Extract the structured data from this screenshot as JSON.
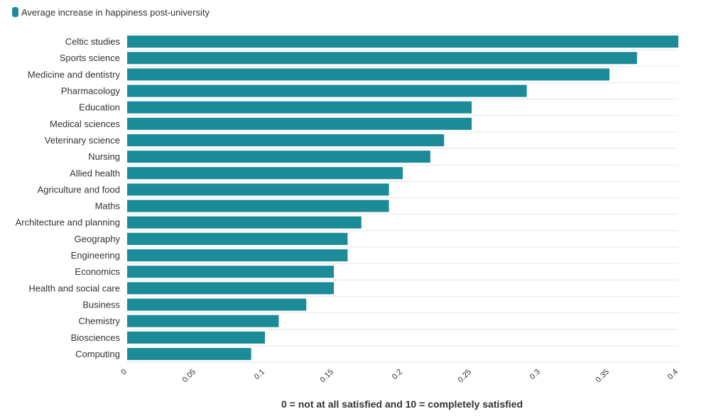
{
  "legend": {
    "label": "Average increase in happiness post-university",
    "color": "#1b8b98"
  },
  "chart_data": {
    "type": "bar",
    "orientation": "horizontal",
    "categories": [
      "Celtic studies",
      "Sports science",
      "Medicine and dentistry",
      "Pharmacology",
      "Education",
      "Medical sciences",
      "Veterinary science",
      "Nursing",
      "Allied health",
      "Agriculture and food",
      "Maths",
      "Architecture and planning",
      "Geography",
      "Engineering",
      "Economics",
      "Health and social care",
      "Business",
      "Chemistry",
      "Biosciences",
      "Computing"
    ],
    "series": [
      {
        "name": "Average increase in happiness post-university",
        "values": [
          0.4,
          0.37,
          0.35,
          0.29,
          0.25,
          0.25,
          0.23,
          0.22,
          0.2,
          0.19,
          0.19,
          0.17,
          0.16,
          0.16,
          0.15,
          0.15,
          0.13,
          0.11,
          0.1,
          0.09
        ]
      }
    ],
    "xlim": [
      0,
      0.4
    ],
    "xticks": [
      "0",
      "0.05",
      "0.1",
      "0.15",
      "0.2",
      "0.25",
      "0.3",
      "0.35",
      "0.4"
    ],
    "xlabel": "0 = not at all satisfied and 10 = completely satisfied",
    "ylabel": "",
    "grid": true,
    "legend_position": "top-left",
    "bar_color": "#1b8b98"
  }
}
